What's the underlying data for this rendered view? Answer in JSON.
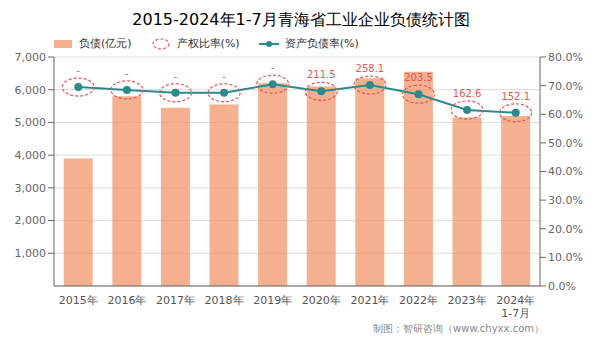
{
  "chart_data": {
    "type": "bar",
    "title": "2015-2024年1-7月青海省工业企业负债统计图",
    "categories": [
      "2015年",
      "2016年",
      "2017年",
      "2018年",
      "2019年",
      "2020年",
      "2021年",
      "2022年",
      "2023年",
      "2024年\n1-7月"
    ],
    "series": [
      {
        "name": "负债(亿元)",
        "type": "bar",
        "color": "#F0956A",
        "values": [
          3900,
          5800,
          5450,
          5550,
          6200,
          6100,
          6350,
          6550,
          5150,
          5200
        ]
      },
      {
        "name": "产权比率(%)",
        "type": "scatter",
        "color": "#E85555",
        "marker": "circle",
        "line_style": "dashed",
        "data_labels": true,
        "values": [
          null,
          null,
          null,
          null,
          null,
          211.5,
          258.1,
          203.5,
          162.6,
          152.1
        ],
        "value_labels": [
          "-",
          "-",
          "-",
          "-",
          "-",
          "211.5",
          "258.1",
          "203.5",
          "162.6",
          "152.1"
        ]
      },
      {
        "name": "资产负债率(%)",
        "type": "line",
        "color": "#2B8A8A",
        "marker": "circle",
        "axis": "y2",
        "values": [
          0.695,
          0.685,
          0.675,
          0.675,
          0.705,
          0.68,
          0.702,
          0.67,
          0.615,
          0.605
        ]
      }
    ],
    "ylim": [
      0,
      7000
    ],
    "yticks": [
      {
        "value": 1000,
        "label": "1,000"
      },
      {
        "value": 2000,
        "label": "2,000"
      },
      {
        "value": 3000,
        "label": "3,000"
      },
      {
        "value": 4000,
        "label": "4,000"
      },
      {
        "value": 5000,
        "label": "5,000"
      },
      {
        "value": 6000,
        "label": "6,000"
      },
      {
        "value": 7000,
        "label": "7,000"
      }
    ],
    "y2lim": [
      0.0,
      0.8
    ],
    "y2ticks": [
      {
        "value": 0.0,
        "label": "0.0%"
      },
      {
        "value": 0.1,
        "label": "10.0%"
      },
      {
        "value": 0.2,
        "label": "20.0%"
      },
      {
        "value": 0.3,
        "label": "30.0%"
      },
      {
        "value": 0.4,
        "label": "40.0%"
      },
      {
        "value": 0.5,
        "label": "50.0%"
      },
      {
        "value": 0.6,
        "label": "60.0%"
      },
      {
        "value": 0.7,
        "label": "70.0%"
      },
      {
        "value": 0.8,
        "label": "80.0%"
      }
    ],
    "grid": true,
    "legend": "top-left",
    "annotations": [
      "制图：智研咨询（www.chyxx.com）"
    ]
  }
}
